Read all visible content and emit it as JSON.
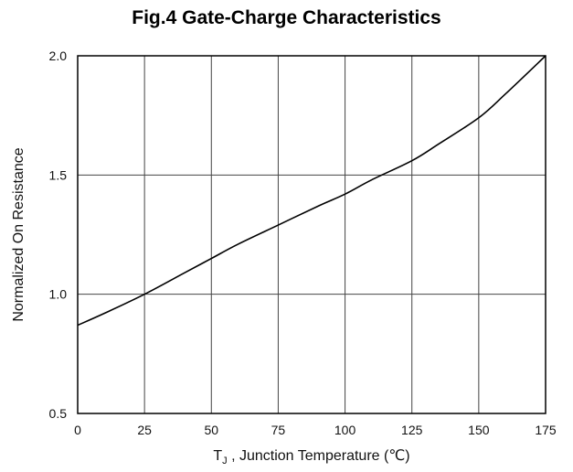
{
  "chart_data": {
    "type": "line",
    "title": "Fig.4 Gate-Charge Characteristics",
    "xlabel": "T",
    "xlabel_sub": "J",
    "xlabel_rest": " , Junction Temperature (℃)",
    "ylabel": "Normalized On Resistance",
    "xlim": [
      0,
      175
    ],
    "ylim": [
      0.5,
      2.0
    ],
    "x_ticks": [
      "0",
      "25",
      "50",
      "75",
      "100",
      "125",
      "150",
      "175"
    ],
    "y_ticks": [
      "0.5",
      "1.0",
      "1.5",
      "2.0"
    ],
    "grid": true,
    "series": [
      {
        "x": [
          0,
          10,
          25,
          40,
          50,
          60,
          75,
          90,
          100,
          110,
          125,
          135,
          150,
          160,
          175
        ],
        "y": [
          0.87,
          0.92,
          1.0,
          1.09,
          1.15,
          1.21,
          1.29,
          1.37,
          1.42,
          1.48,
          1.56,
          1.63,
          1.74,
          1.84,
          2.0
        ]
      }
    ]
  }
}
